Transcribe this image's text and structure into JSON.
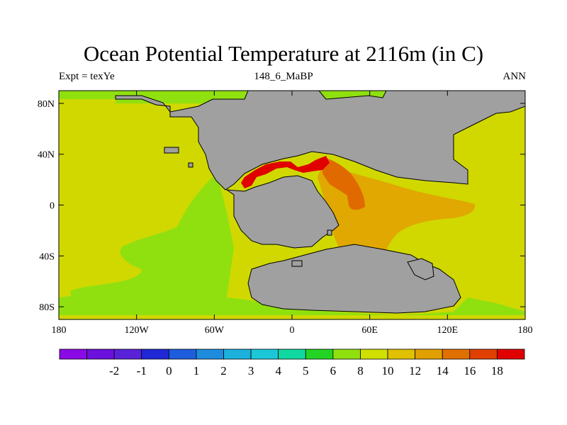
{
  "title": "Ocean Potential Temperature at 2116m (in C)",
  "left_string": "Expt = texYe",
  "center_string": "148_6_MaBP",
  "right_string": "ANN",
  "map": {
    "lon_ticks": [
      -180,
      -120,
      -60,
      0,
      60,
      120,
      180
    ],
    "lon_labels": [
      "180",
      "120W",
      "60W",
      "0",
      "60E",
      "120E",
      "180"
    ],
    "lat_ticks": [
      80,
      40,
      0,
      -40,
      -80
    ],
    "lat_labels": [
      "80N",
      "40N",
      "0",
      "40S",
      "80S"
    ],
    "lon_range": [
      -180,
      180
    ],
    "lat_range": [
      -90,
      90
    ],
    "land_color": "#a0a0a0"
  },
  "colorbar": {
    "colors": [
      "#8a0ae6",
      "#6c10dd",
      "#5a22d8",
      "#1f28d6",
      "#1e5ede",
      "#1e8cdc",
      "#1cb0dc",
      "#1cc8d8",
      "#10d8a0",
      "#24d424",
      "#90e010",
      "#d0e000",
      "#e0c000",
      "#e0a000",
      "#e07000",
      "#e04000",
      "#e00000"
    ],
    "labels": [
      "-2",
      "-1",
      "0",
      "1",
      "2",
      "3",
      "4",
      "5",
      "6",
      "8",
      "10",
      "12",
      "14",
      "16",
      "18"
    ]
  }
}
